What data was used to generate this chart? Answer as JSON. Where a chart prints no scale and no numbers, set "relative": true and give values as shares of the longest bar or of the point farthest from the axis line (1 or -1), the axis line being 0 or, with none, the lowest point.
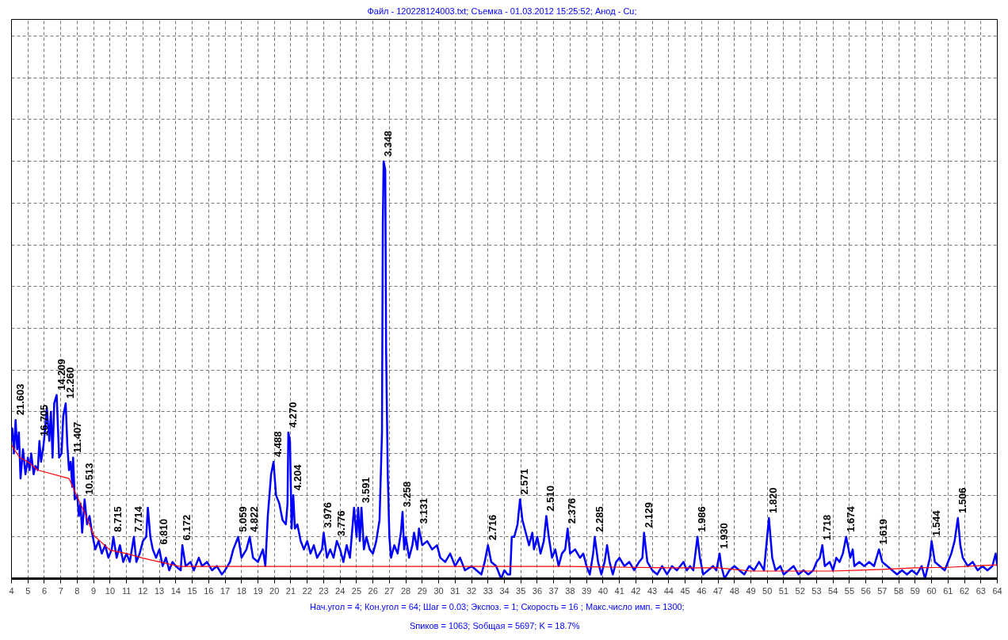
{
  "chart_data": {
    "type": "line",
    "title": "Файл - 120228124003.txt;  Съемка - 01.03.2012 15:25:52;  Анод - Cu;",
    "relative": true,
    "grid": true,
    "xlim": [
      4,
      64
    ],
    "xticks": [
      4,
      5,
      6,
      7,
      8,
      9,
      10,
      11,
      12,
      13,
      14,
      15,
      16,
      17,
      18,
      19,
      20,
      21,
      22,
      23,
      24,
      25,
      26,
      27,
      28,
      29,
      30,
      31,
      32,
      33,
      34,
      35,
      36,
      37,
      38,
      39,
      40,
      41,
      42,
      43,
      44,
      45,
      46,
      47,
      48,
      49,
      50,
      51,
      52,
      53,
      54,
      55,
      56,
      57,
      58,
      59,
      60,
      61,
      62,
      63,
      64
    ],
    "series": [
      {
        "color": "#0000ff",
        "x": [
          4.0,
          4.05,
          4.15,
          4.25,
          4.35,
          4.45,
          4.55,
          4.7,
          4.85,
          5.0,
          5.1,
          5.2,
          5.35,
          5.45,
          5.6,
          5.7,
          5.8,
          5.95,
          6.05,
          6.15,
          6.3,
          6.4,
          6.5,
          6.6,
          6.75,
          6.9,
          7.05,
          7.15,
          7.3,
          7.4,
          7.5,
          7.6,
          7.7,
          7.75,
          7.85,
          8.0,
          8.1,
          8.2,
          8.3,
          8.45,
          8.6,
          8.75,
          8.9,
          9.0,
          9.1,
          9.3,
          9.5,
          9.7,
          9.9,
          10.1,
          10.2,
          10.4,
          10.6,
          10.8,
          11.0,
          11.2,
          11.45,
          11.6,
          11.8,
          12.0,
          12.2,
          12.3,
          12.45,
          12.6,
          12.8,
          13.0,
          13.2,
          13.4,
          13.6,
          13.8,
          14.0,
          14.3,
          14.4,
          14.6,
          14.9,
          15.1,
          15.4,
          15.6,
          15.9,
          16.2,
          16.5,
          16.8,
          17.0,
          17.3,
          17.5,
          17.8,
          18.0,
          18.3,
          18.5,
          18.7,
          19.0,
          19.3,
          19.45,
          19.6,
          19.8,
          19.95,
          20.1,
          20.3,
          20.5,
          20.7,
          20.8,
          20.85,
          20.95,
          21.05,
          21.15,
          21.25,
          21.4,
          21.6,
          21.8,
          22.0,
          22.2,
          22.4,
          22.6,
          22.9,
          23.0,
          23.2,
          23.4,
          23.6,
          23.8,
          24.0,
          24.2,
          24.4,
          24.6,
          24.85,
          25.0,
          25.1,
          25.2,
          25.3,
          25.45,
          25.6,
          25.8,
          26.0,
          26.2,
          26.4,
          26.55,
          26.6,
          26.65,
          26.75,
          26.8,
          26.9,
          27.0,
          27.1,
          27.3,
          27.5,
          27.7,
          27.8,
          27.9,
          28.0,
          28.2,
          28.4,
          28.5,
          28.7,
          28.8,
          29.0,
          29.3,
          29.6,
          29.9,
          30.1,
          30.4,
          30.7,
          31.0,
          31.3,
          31.6,
          32.0,
          32.3,
          32.6,
          32.8,
          33.0,
          33.2,
          33.5,
          33.8,
          34.0,
          34.2,
          34.35,
          34.45,
          34.6,
          34.8,
          34.95,
          35.1,
          35.3,
          35.5,
          35.7,
          35.8,
          36.0,
          36.2,
          36.4,
          36.55,
          36.7,
          36.9,
          37.1,
          37.3,
          37.5,
          37.7,
          37.85,
          38.0,
          38.3,
          38.6,
          38.8,
          39.0,
          39.2,
          39.4,
          39.5,
          39.7,
          39.9,
          40.1,
          40.25,
          40.4,
          40.6,
          40.8,
          41.0,
          41.3,
          41.6,
          41.9,
          42.2,
          42.4,
          42.5,
          42.7,
          43.0,
          43.3,
          43.6,
          43.9,
          44.2,
          44.5,
          44.9,
          45.1,
          45.3,
          45.5,
          45.75,
          45.9,
          46.1,
          46.4,
          46.7,
          46.9,
          47.1,
          47.2,
          47.4,
          47.7,
          48.0,
          48.3,
          48.6,
          48.9,
          49.2,
          49.5,
          49.8,
          50.1,
          50.3,
          50.5,
          50.8,
          51.0,
          51.3,
          51.6,
          51.9,
          52.2,
          52.5,
          52.8,
          53.0,
          53.2,
          53.35,
          53.5,
          53.8,
          54.0,
          54.2,
          54.4,
          54.6,
          54.8,
          54.9,
          55.05,
          55.2,
          55.3,
          55.6,
          55.9,
          56.2,
          56.5,
          56.8,
          57.0,
          57.3,
          57.6,
          57.9,
          58.2,
          58.5,
          58.8,
          59.1,
          59.4,
          59.6,
          59.9,
          60.0,
          60.2,
          60.5,
          60.8,
          61.0,
          61.2,
          61.4,
          61.6,
          61.75,
          61.9,
          62.2,
          62.5,
          62.8,
          63.1,
          63.4,
          63.7,
          63.9,
          64.0
        ],
        "values": [
          0.33,
          0.36,
          0.3,
          0.38,
          0.31,
          0.35,
          0.24,
          0.31,
          0.25,
          0.29,
          0.26,
          0.3,
          0.25,
          0.27,
          0.26,
          0.33,
          0.28,
          0.32,
          0.36,
          0.41,
          0.33,
          0.4,
          0.29,
          0.42,
          0.44,
          0.29,
          0.3,
          0.39,
          0.42,
          0.32,
          0.26,
          0.28,
          0.22,
          0.29,
          0.19,
          0.2,
          0.15,
          0.18,
          0.11,
          0.19,
          0.13,
          0.15,
          0.11,
          0.09,
          0.07,
          0.09,
          0.06,
          0.08,
          0.05,
          0.07,
          0.1,
          0.05,
          0.08,
          0.04,
          0.06,
          0.04,
          0.1,
          0.04,
          0.06,
          0.09,
          0.1,
          0.17,
          0.1,
          0.07,
          0.05,
          0.07,
          0.03,
          0.05,
          0.02,
          0.04,
          0.03,
          0.02,
          0.08,
          0.03,
          0.04,
          0.02,
          0.05,
          0.03,
          0.04,
          0.02,
          0.03,
          0.01,
          0.02,
          0.04,
          0.07,
          0.1,
          0.05,
          0.07,
          0.1,
          0.05,
          0.04,
          0.07,
          0.03,
          0.15,
          0.25,
          0.28,
          0.2,
          0.18,
          0.14,
          0.13,
          0.18,
          0.35,
          0.33,
          0.12,
          0.2,
          0.12,
          0.13,
          0.09,
          0.07,
          0.09,
          0.06,
          0.08,
          0.05,
          0.07,
          0.11,
          0.05,
          0.07,
          0.05,
          0.09,
          0.07,
          0.04,
          0.08,
          0.05,
          0.17,
          0.1,
          0.17,
          0.09,
          0.17,
          0.07,
          0.1,
          0.07,
          0.06,
          0.09,
          0.14,
          0.35,
          0.85,
          1.0,
          0.98,
          0.55,
          0.25,
          0.1,
          0.05,
          0.08,
          0.06,
          0.11,
          0.16,
          0.07,
          0.1,
          0.05,
          0.08,
          0.11,
          0.07,
          0.12,
          0.08,
          0.09,
          0.07,
          0.08,
          0.05,
          0.04,
          0.06,
          0.03,
          0.05,
          0.02,
          0.03,
          0.02,
          0.01,
          0.04,
          0.08,
          0.04,
          0.03,
          0.0,
          0.02,
          0.01,
          0.01,
          0.1,
          0.1,
          0.13,
          0.19,
          0.14,
          0.11,
          0.08,
          0.11,
          0.07,
          0.1,
          0.06,
          0.09,
          0.15,
          0.1,
          0.05,
          0.07,
          0.03,
          0.06,
          0.07,
          0.12,
          0.06,
          0.07,
          0.05,
          0.06,
          0.03,
          0.01,
          0.06,
          0.1,
          0.04,
          0.01,
          0.04,
          0.08,
          0.04,
          0.01,
          0.04,
          0.05,
          0.03,
          0.04,
          0.02,
          0.04,
          0.05,
          0.11,
          0.04,
          0.02,
          0.01,
          0.03,
          0.01,
          0.03,
          0.02,
          0.04,
          0.02,
          0.03,
          0.02,
          0.1,
          0.05,
          0.01,
          0.02,
          0.03,
          0.02,
          0.06,
          0.03,
          0.0,
          0.02,
          0.03,
          0.02,
          0.01,
          0.03,
          0.02,
          0.04,
          0.02,
          0.145,
          0.05,
          0.02,
          0.03,
          0.01,
          0.02,
          0.03,
          0.01,
          0.02,
          0.01,
          0.02,
          0.04,
          0.05,
          0.08,
          0.03,
          0.04,
          0.02,
          0.05,
          0.04,
          0.06,
          0.1,
          0.08,
          0.05,
          0.07,
          0.03,
          0.04,
          0.03,
          0.04,
          0.03,
          0.07,
          0.04,
          0.03,
          0.02,
          0.01,
          0.02,
          0.01,
          0.02,
          0.01,
          0.03,
          0.0,
          0.05,
          0.09,
          0.04,
          0.03,
          0.02,
          0.04,
          0.06,
          0.09,
          0.145,
          0.08,
          0.05,
          0.03,
          0.04,
          0.02,
          0.03,
          0.02,
          0.03,
          0.06,
          0.03
        ]
      },
      {
        "color": "#ff0000",
        "x": [
          4,
          4.5,
          5,
          5.6,
          7.5,
          8,
          8.5,
          9,
          10,
          11,
          12,
          13,
          14.3,
          15.5,
          38,
          44,
          47,
          48,
          49,
          53.9,
          55.6,
          57,
          59,
          61,
          63,
          64
        ],
        "values": [
          0.32,
          0.29,
          0.28,
          0.26,
          0.24,
          0.196,
          0.154,
          0.104,
          0.068,
          0.06,
          0.049,
          0.04,
          0.029,
          0.029,
          0.029,
          0.026,
          0.026,
          0.022,
          0.018,
          0.018,
          0.02,
          0.022,
          0.026,
          0.027,
          0.031,
          0.033
        ]
      }
    ],
    "annotations": [
      {
        "text": "21.603",
        "x": 4.25,
        "y": 0.38
      },
      {
        "text": "16.705",
        "x": 5.7,
        "y": 0.33
      },
      {
        "text": "14.209",
        "x": 6.75,
        "y": 0.44
      },
      {
        "text": "12.260",
        "x": 7.3,
        "y": 0.42
      },
      {
        "text": "11.407",
        "x": 7.75,
        "y": 0.29
      },
      {
        "text": "10.513",
        "x": 8.45,
        "y": 0.19
      },
      {
        "text": "8.715",
        "x": 10.2,
        "y": 0.1
      },
      {
        "text": "7.714",
        "x": 11.45,
        "y": 0.1
      },
      {
        "text": "6.810",
        "x": 13.0,
        "y": 0.07
      },
      {
        "text": "6.172",
        "x": 14.4,
        "y": 0.08
      },
      {
        "text": "5.059",
        "x": 17.8,
        "y": 0.1
      },
      {
        "text": "4.822",
        "x": 18.5,
        "y": 0.1
      },
      {
        "text": "4.488",
        "x": 19.95,
        "y": 0.28
      },
      {
        "text": "4.270",
        "x": 20.85,
        "y": 0.35
      },
      {
        "text": "4.204",
        "x": 21.15,
        "y": 0.2
      },
      {
        "text": "3.976",
        "x": 23.0,
        "y": 0.11
      },
      {
        "text": "3.776",
        "x": 23.8,
        "y": 0.09
      },
      {
        "text": "3.591",
        "x": 25.3,
        "y": 0.17
      },
      {
        "text": "3.348",
        "x": 26.65,
        "y": 1.0
      },
      {
        "text": "3.258",
        "x": 27.8,
        "y": 0.16
      },
      {
        "text": "3.131",
        "x": 28.8,
        "y": 0.12
      },
      {
        "text": "2.716",
        "x": 33.0,
        "y": 0.08
      },
      {
        "text": "2.571",
        "x": 34.95,
        "y": 0.19
      },
      {
        "text": "2.510",
        "x": 36.55,
        "y": 0.15
      },
      {
        "text": "2.376",
        "x": 37.85,
        "y": 0.12
      },
      {
        "text": "2.285",
        "x": 39.5,
        "y": 0.1
      },
      {
        "text": "2.129",
        "x": 42.5,
        "y": 0.11
      },
      {
        "text": "1.986",
        "x": 45.75,
        "y": 0.1
      },
      {
        "text": "1.930",
        "x": 47.1,
        "y": 0.06
      },
      {
        "text": "1.820",
        "x": 50.1,
        "y": 0.145
      },
      {
        "text": "1.718",
        "x": 53.35,
        "y": 0.08
      },
      {
        "text": "1.674",
        "x": 54.8,
        "y": 0.1
      },
      {
        "text": "1.619",
        "x": 56.8,
        "y": 0.07
      },
      {
        "text": "1.544",
        "x": 60.0,
        "y": 0.09
      },
      {
        "text": "1.506",
        "x": 61.6,
        "y": 0.145
      },
      "Нач.угол = 4;  Кон.угол = 64;  Шаг = 0.03;  Экспоз. = 1;  Скорость =  16 ;  Макс.число имп. = 1300;",
      "Sпиков =   1063;   Sобщая =   5697;  K =  18.7%"
    ]
  }
}
